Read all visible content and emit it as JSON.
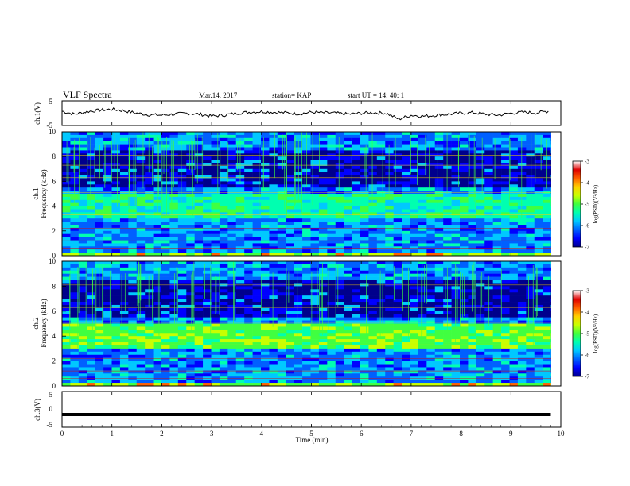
{
  "header": {
    "title": "VLF Spectra",
    "date": "Mar.14, 2017",
    "station": "station= KAP",
    "start": "start  UT =   14: 40: 1"
  },
  "colors": {
    "trace": "#000000",
    "colorbar": [
      "#00008c",
      "#0000ff",
      "#0060ff",
      "#00c8ff",
      "#00ffb0",
      "#40ff40",
      "#c8ff00",
      "#ffd000",
      "#ff6000",
      "#e00000",
      "#ffffff"
    ]
  },
  "chart_data": [
    {
      "type": "line",
      "ylabel": "ch.1(V)",
      "ylim": [
        -5,
        5
      ],
      "yticks": [
        "5",
        "-5"
      ],
      "xlim": [
        0,
        10
      ],
      "x": [
        0,
        0.25,
        0.5,
        0.75,
        1,
        1.25,
        1.5,
        1.75,
        2,
        2.25,
        2.5,
        2.75,
        3,
        3.25,
        3.5,
        3.75,
        4,
        4.25,
        4.5,
        4.75,
        5,
        5.25,
        5.5,
        5.75,
        6,
        6.25,
        6.5,
        6.75,
        7,
        7.25,
        7.5,
        7.75,
        8,
        8.25,
        8.5,
        8.75,
        9,
        9.25,
        9.5,
        9.75
      ],
      "values": [
        1.0,
        -0.5,
        0.8,
        1.5,
        2.0,
        1.2,
        0.0,
        -0.8,
        -1.0,
        -0.5,
        0.0,
        -0.5,
        -1.5,
        -1.0,
        0.0,
        0.5,
        0.8,
        0.5,
        0.2,
        -0.3,
        0.5,
        0.2,
        0.0,
        -0.5,
        0.0,
        0.3,
        0.0,
        -3.0,
        -1.0,
        -1.5,
        -1.0,
        -0.5,
        0.0,
        0.3,
        -0.5,
        -1.0,
        0.0,
        0.5,
        0.2,
        1.0
      ]
    },
    {
      "type": "heatmap",
      "ylabel": "ch.1\nFrequency (kHz)",
      "ylim": [
        0,
        10
      ],
      "yticks": [
        "0",
        "2",
        "4",
        "6",
        "8",
        "10"
      ],
      "xlim": [
        0,
        10
      ],
      "colorbar": {
        "label": "log(PSD)(V²/Hz)",
        "range": [
          -7,
          -3
        ],
        "ticks": [
          "-3",
          "-4",
          "-5",
          "-6",
          "-7"
        ]
      }
    },
    {
      "type": "heatmap",
      "ylabel": "ch.2\nFrequency (kHz)",
      "ylim": [
        0,
        10
      ],
      "yticks": [
        "0",
        "2",
        "4",
        "6",
        "8",
        "10"
      ],
      "xlim": [
        0,
        10
      ],
      "colorbar": {
        "label": "log(PSD)(V²/Hz)",
        "range": [
          -7,
          -3
        ],
        "ticks": [
          "-3",
          "-4",
          "-5",
          "-6",
          "-7"
        ]
      }
    },
    {
      "type": "line",
      "ylabel": "ch.3(V)",
      "ylim": [
        -5,
        5
      ],
      "yticks": [
        "5",
        "0",
        "-5"
      ],
      "xlim": [
        0,
        10
      ],
      "x": [
        0,
        9.8
      ],
      "values": [
        -1.5,
        -1.5
      ]
    }
  ],
  "xaxis": {
    "label": "Time (min)",
    "ticks": [
      "0",
      "1",
      "2",
      "3",
      "4",
      "5",
      "6",
      "7",
      "8",
      "9",
      "10"
    ]
  }
}
